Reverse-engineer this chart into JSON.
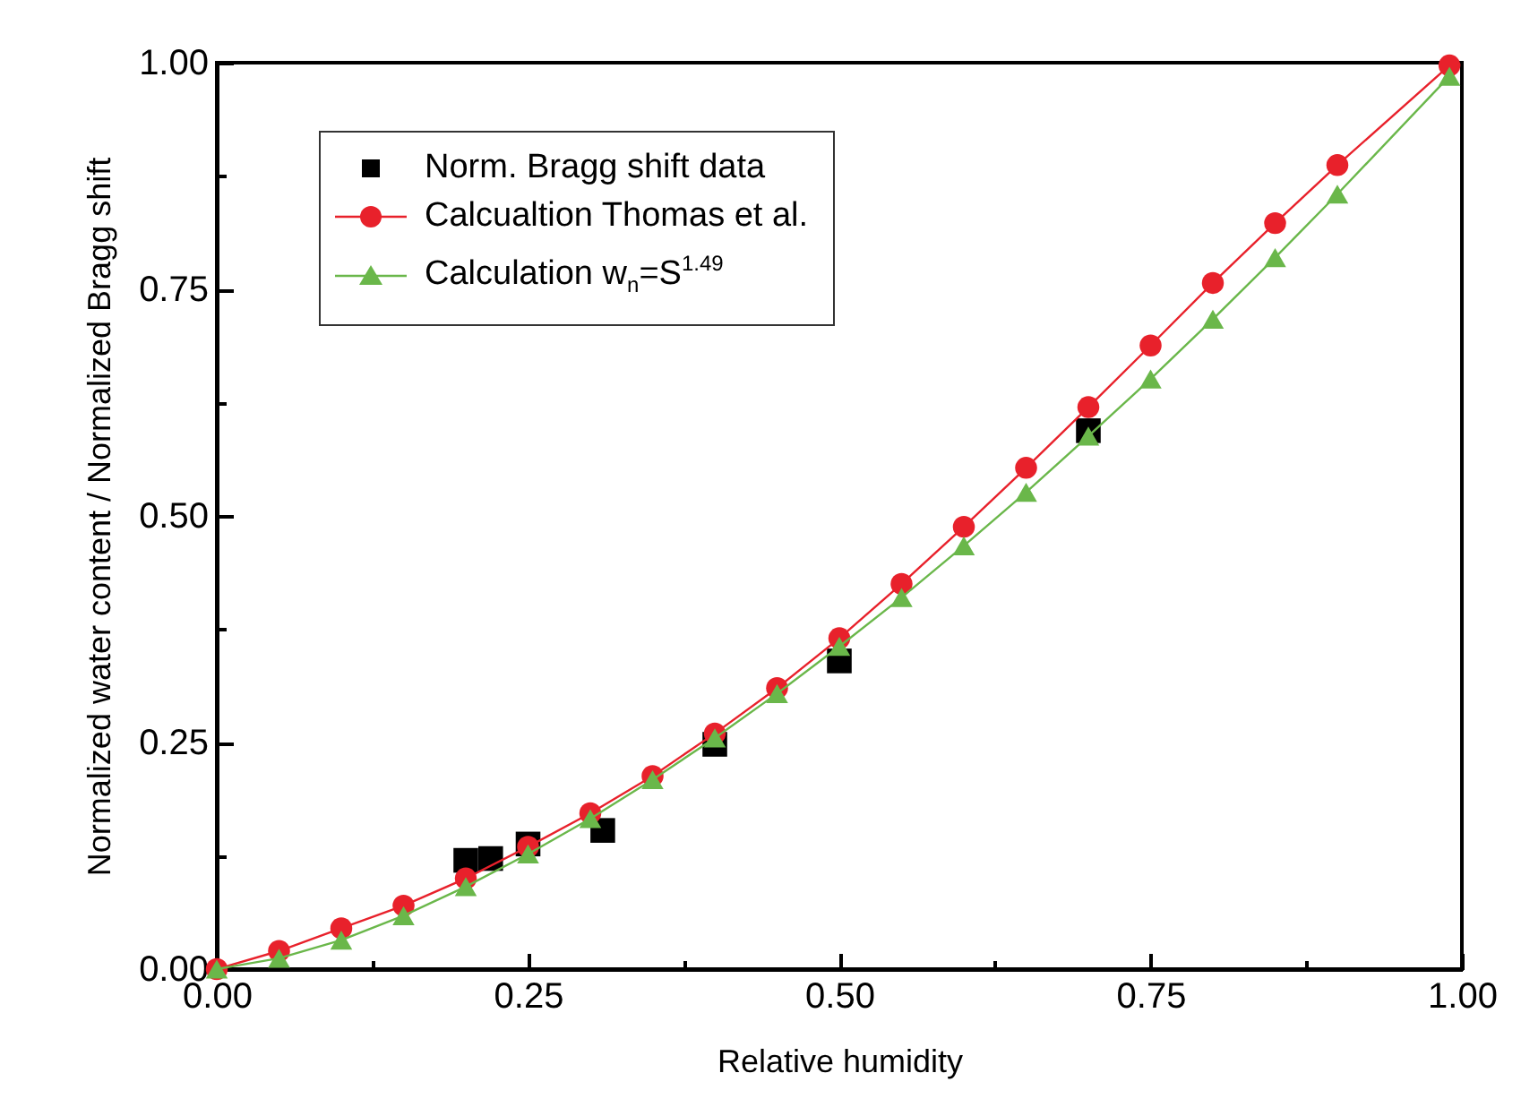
{
  "chart_data": {
    "type": "line",
    "xlabel": "Relative humidity",
    "ylabel": "Normalized water content / Normalized Bragg shift",
    "xlim": [
      0,
      1
    ],
    "ylim": [
      0,
      1
    ],
    "xticks": [
      {
        "value": 0,
        "label": "0.00"
      },
      {
        "value": 0.125,
        "label": null
      },
      {
        "value": 0.25,
        "label": "0.25"
      },
      {
        "value": 0.375,
        "label": null
      },
      {
        "value": 0.5,
        "label": "0.50"
      },
      {
        "value": 0.625,
        "label": null
      },
      {
        "value": 0.75,
        "label": "0.75"
      },
      {
        "value": 0.875,
        "label": null
      },
      {
        "value": 1,
        "label": "1.00"
      }
    ],
    "yticks": [
      {
        "value": 0,
        "label": "0.00"
      },
      {
        "value": 0.125,
        "label": null
      },
      {
        "value": 0.25,
        "label": "0.25"
      },
      {
        "value": 0.375,
        "label": null
      },
      {
        "value": 0.5,
        "label": "0.50"
      },
      {
        "value": 0.625,
        "label": null
      },
      {
        "value": 0.75,
        "label": "0.75"
      },
      {
        "value": 0.875,
        "label": null
      },
      {
        "value": 1,
        "label": "1.00"
      }
    ],
    "grid": false,
    "legend": "top left",
    "series": [
      {
        "name": "Norm. Bragg shift data",
        "type": "scatter",
        "marker": "square",
        "color": "#000000",
        "x": [
          0.2,
          0.22,
          0.25,
          0.31,
          0.4,
          0.5,
          0.7
        ],
        "values": [
          0.12,
          0.122,
          0.138,
          0.153,
          0.248,
          0.34,
          0.594
        ]
      },
      {
        "name": "Calcualtion Thomas et al.",
        "marker": "circle",
        "color": "#e8212b",
        "x": [
          0,
          0.05,
          0.1,
          0.15,
          0.2,
          0.25,
          0.3,
          0.35,
          0.4,
          0.45,
          0.5,
          0.55,
          0.6,
          0.65,
          0.7,
          0.75,
          0.8,
          0.85,
          0.9,
          0.99
        ],
        "values": [
          0,
          0.02,
          0.045,
          0.07,
          0.1,
          0.135,
          0.172,
          0.213,
          0.26,
          0.31,
          0.365,
          0.425,
          0.488,
          0.553,
          0.62,
          0.688,
          0.757,
          0.823,
          0.887,
          0.997
        ]
      },
      {
        "name": "Calculation w$_{n}$=S$^{1.49}$",
        "marker": "triangle",
        "color": "#6ab74a",
        "x": [
          0,
          0.05,
          0.1,
          0.15,
          0.2,
          0.25,
          0.3,
          0.35,
          0.4,
          0.45,
          0.5,
          0.55,
          0.6,
          0.65,
          0.7,
          0.75,
          0.8,
          0.85,
          0.9,
          0.99
        ],
        "values": [
          0,
          0.012,
          0.032,
          0.059,
          0.091,
          0.127,
          0.166,
          0.209,
          0.255,
          0.304,
          0.356,
          0.41,
          0.467,
          0.526,
          0.588,
          0.651,
          0.717,
          0.785,
          0.855,
          0.985
        ]
      }
    ]
  }
}
